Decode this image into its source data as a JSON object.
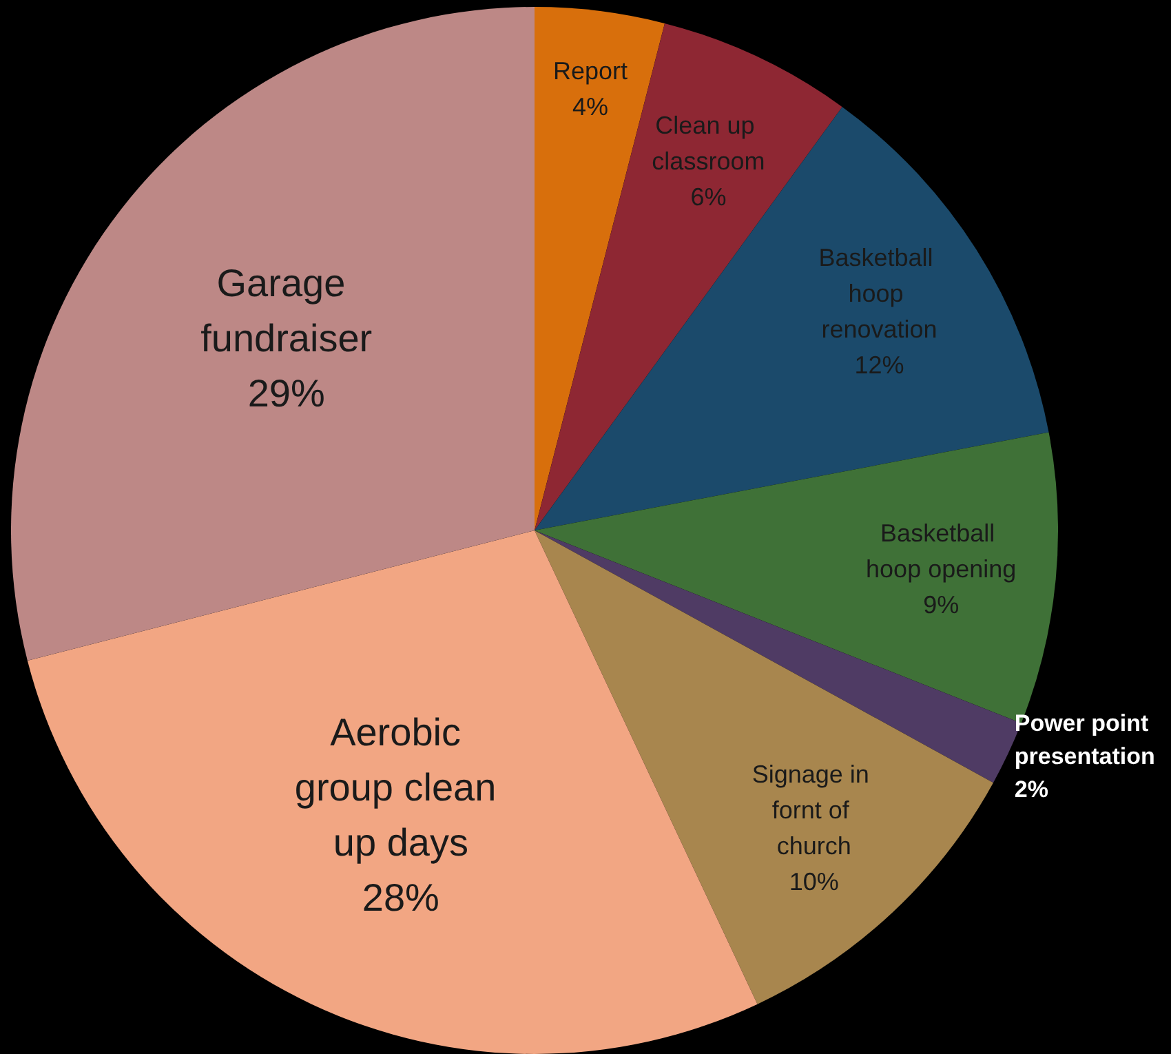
{
  "chart_data": {
    "type": "pie",
    "categories": [
      "Report",
      "Clean up classroom",
      "Basketball hoop renovation",
      "Basketball hoop opening",
      "Power point presentation",
      "Signage in fornt of church",
      "Aerobic group clean up days",
      "Garage fundraiser"
    ],
    "values": [
      4,
      6,
      12,
      9,
      2,
      10,
      28,
      29
    ],
    "value_labels": [
      "4%",
      "6%",
      "12%",
      "9%",
      "2%",
      "10%",
      "28%",
      "29%"
    ],
    "colors": [
      "#d86f0c",
      "#8e2733",
      "#1b4a6b",
      "#3f7137",
      "#4f3b64",
      "#a8864e",
      "#f2a683",
      "#bd8886"
    ]
  }
}
